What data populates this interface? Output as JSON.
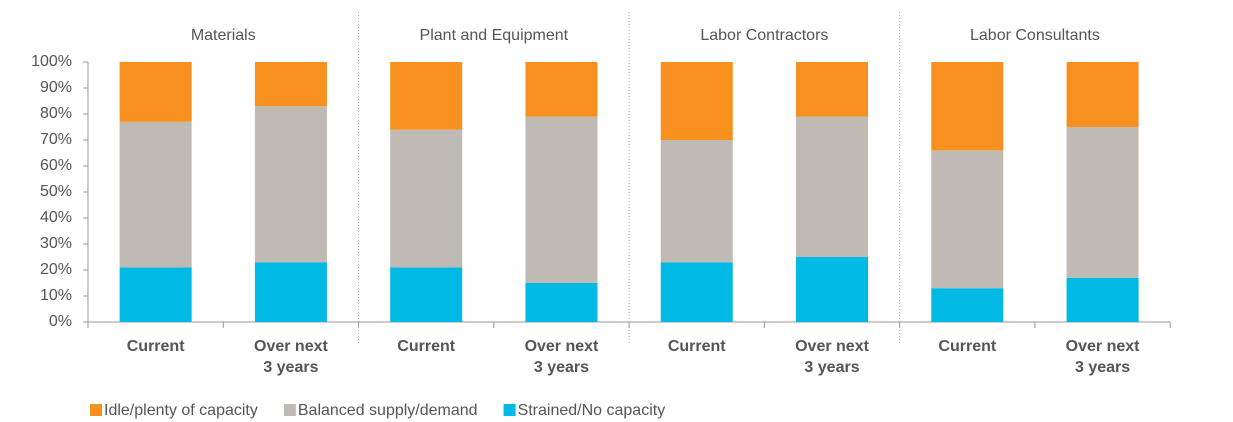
{
  "chart_data": {
    "type": "stacked_bar",
    "groups": [
      "Materials",
      "Plant and Equipment",
      "Labor Contractors",
      "Labor Consultants"
    ],
    "categories": [
      "Current",
      "Over next 3 years",
      "Current",
      "Over next 3 years",
      "Current",
      "Over next 3 years",
      "Current",
      "Over next 3 years"
    ],
    "series": [
      {
        "name": "Idle/plenty of capacity",
        "color": "#f7901e",
        "values": [
          23,
          17,
          26,
          21,
          30,
          21,
          34,
          25
        ]
      },
      {
        "name": "Balanced supply/demand",
        "color": "#bfbab4",
        "values": [
          56,
          60,
          53,
          64,
          47,
          54,
          53,
          58
        ]
      },
      {
        "name": "Strained/No capacity",
        "color": "#00b9e4",
        "values": [
          21,
          23,
          21,
          15,
          23,
          25,
          13,
          17
        ]
      }
    ],
    "ylim": [
      0,
      100
    ],
    "yticks": [
      {
        "value": 0,
        "label": "0%"
      },
      {
        "value": 10,
        "label": "10%"
      },
      {
        "value": 20,
        "label": "20%"
      },
      {
        "value": 30,
        "label": "30%"
      },
      {
        "value": 40,
        "label": "40%"
      },
      {
        "value": 50,
        "label": "50%"
      },
      {
        "value": 60,
        "label": "60%"
      },
      {
        "value": 70,
        "label": "70%"
      },
      {
        "value": 80,
        "label": "80%"
      },
      {
        "value": 90,
        "label": "90%"
      },
      {
        "value": 100,
        "label": "100%"
      }
    ],
    "legend": "bottom-left"
  }
}
